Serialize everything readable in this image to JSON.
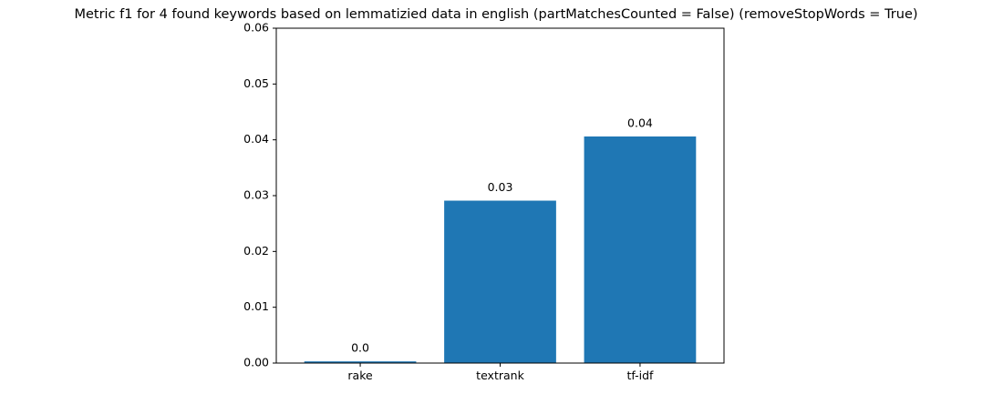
{
  "chart_data": {
    "type": "bar",
    "title": "Metric f1 for 4 found keywords based on lemmatizied data in english (partMatchesCounted = False) (removeStopWords = True)",
    "xlabel": "",
    "ylabel": "",
    "categories": [
      "rake",
      "textrank",
      "tf-idf"
    ],
    "values": [
      0.0003,
      0.0291,
      0.0406
    ],
    "data_labels": [
      "0.0",
      "0.03",
      "0.04"
    ],
    "ylim": [
      0,
      0.06
    ],
    "yticks": [
      0.0,
      0.01,
      0.02,
      0.03,
      0.04,
      0.05,
      0.06
    ],
    "ytick_labels": [
      "0.00",
      "0.01",
      "0.02",
      "0.03",
      "0.04",
      "0.05",
      "0.06"
    ],
    "bar_color": "#1f77b4",
    "grid": false,
    "legend": "none"
  }
}
